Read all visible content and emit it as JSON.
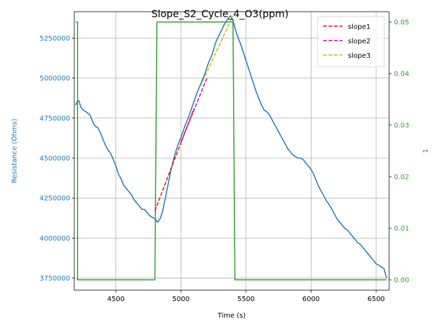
{
  "chart_data": {
    "type": "line",
    "title": "Slope_S2_Cycle_4_O3(ppm)",
    "xlabel": "Time (s)",
    "ylabel_left": "Resistance (Ohms)",
    "ylabel_right": "1",
    "xlim": [
      4180,
      6600
    ],
    "ylim_left": [
      3675000,
      5415000
    ],
    "ylim_right": [
      -0.002,
      0.052
    ],
    "x_ticks": [
      4500,
      5000,
      5500,
      6000,
      6500
    ],
    "y_left_ticks": [
      3750000,
      4000000,
      4250000,
      4500000,
      4750000,
      5000000,
      5250000
    ],
    "y_right_ticks": [
      0.0,
      0.01,
      0.02,
      0.03,
      0.04,
      0.05
    ],
    "x_tick_labels": [
      "4500",
      "5000",
      "5500",
      "6000",
      "6500"
    ],
    "y_left_tick_labels": [
      "3750000",
      "4000000",
      "4250000",
      "4500000",
      "4750000",
      "5000000",
      "5250000"
    ],
    "y_right_tick_labels": [
      "0.00",
      "0.01",
      "0.02",
      "0.03",
      "0.04",
      "0.05"
    ],
    "grid": true,
    "legend_position": "top-right",
    "colors": {
      "resistance": "#1f77b4",
      "ozone": "#2ca02c",
      "slope1": "#ff0000",
      "slope2": "#bf00bf",
      "slope3": "#bfbf00"
    },
    "series": [
      {
        "key": "resistance",
        "axis": "left",
        "style": "solid",
        "x": [
          4190,
          4200,
          4215,
          4230,
          4250,
          4270,
          4300,
          4320,
          4340,
          4360,
          4380,
          4400,
          4420,
          4440,
          4460,
          4480,
          4500,
          4520,
          4540,
          4560,
          4580,
          4600,
          4620,
          4640,
          4660,
          4680,
          4700,
          4720,
          4740,
          4760,
          4780,
          4800,
          4820,
          4840,
          4860,
          4880,
          4900,
          4920,
          4940,
          4960,
          4980,
          5000,
          5030,
          5060,
          5090,
          5120,
          5150,
          5180,
          5210,
          5240,
          5270,
          5300,
          5330,
          5360,
          5380,
          5400,
          5420,
          5440,
          5460,
          5480,
          5500,
          5520,
          5540,
          5560,
          5580,
          5600,
          5620,
          5640,
          5660,
          5680,
          5700,
          5720,
          5740,
          5760,
          5780,
          5800,
          5820,
          5840,
          5860,
          5880,
          5900,
          5920,
          5940,
          5960,
          5980,
          6000,
          6020,
          6040,
          6060,
          6080,
          6100,
          6120,
          6140,
          6160,
          6180,
          6200,
          6220,
          6240,
          6260,
          6280,
          6300,
          6320,
          6340,
          6360,
          6380,
          6400,
          6420,
          6440,
          6460,
          6480,
          6500,
          6520,
          6540,
          6560,
          6580
        ],
        "y": [
          4830000,
          4850000,
          4860000,
          4820000,
          4800000,
          4790000,
          4770000,
          4730000,
          4700000,
          4690000,
          4660000,
          4620000,
          4580000,
          4550000,
          4530000,
          4490000,
          4450000,
          4400000,
          4370000,
          4330000,
          4310000,
          4290000,
          4270000,
          4240000,
          4220000,
          4200000,
          4180000,
          4180000,
          4160000,
          4140000,
          4130000,
          4120000,
          4100000,
          4120000,
          4170000,
          4250000,
          4330000,
          4410000,
          4480000,
          4540000,
          4590000,
          4630000,
          4700000,
          4760000,
          4830000,
          4900000,
          4960000,
          5020000,
          5090000,
          5150000,
          5230000,
          5280000,
          5330000,
          5370000,
          5390000,
          5360000,
          5300000,
          5250000,
          5210000,
          5160000,
          5110000,
          5060000,
          5010000,
          4960000,
          4910000,
          4870000,
          4830000,
          4800000,
          4790000,
          4770000,
          4740000,
          4710000,
          4680000,
          4650000,
          4620000,
          4590000,
          4560000,
          4540000,
          4520000,
          4510000,
          4500000,
          4500000,
          4490000,
          4470000,
          4450000,
          4430000,
          4400000,
          4360000,
          4320000,
          4290000,
          4260000,
          4230000,
          4210000,
          4180000,
          4150000,
          4120000,
          4100000,
          4080000,
          4060000,
          4050000,
          4030000,
          4010000,
          3990000,
          3970000,
          3960000,
          3940000,
          3920000,
          3900000,
          3880000,
          3860000,
          3840000,
          3830000,
          3820000,
          3810000,
          3750000
        ]
      },
      {
        "key": "ozone",
        "axis": "right",
        "style": "solid",
        "x": [
          4190,
          4205,
          4205,
          4800,
          4815,
          5400,
          5415,
          6580
        ],
        "y": [
          0.05,
          0.05,
          0.0,
          0.0,
          0.05,
          0.05,
          0.0,
          0.0
        ]
      },
      {
        "key": "slope1",
        "name": "slope1",
        "axis": "left",
        "style": "dashed",
        "x": [
          4800,
          5100
        ],
        "y": [
          4170000,
          4810000
        ]
      },
      {
        "key": "slope2",
        "name": "slope2",
        "axis": "left",
        "style": "dashed",
        "x": [
          5000,
          5200
        ],
        "y": [
          4600000,
          5000000
        ]
      },
      {
        "key": "slope3",
        "name": "slope3",
        "axis": "left",
        "style": "dashed",
        "x": [
          5150,
          5400
        ],
        "y": [
          4950000,
          5390000
        ]
      }
    ]
  }
}
